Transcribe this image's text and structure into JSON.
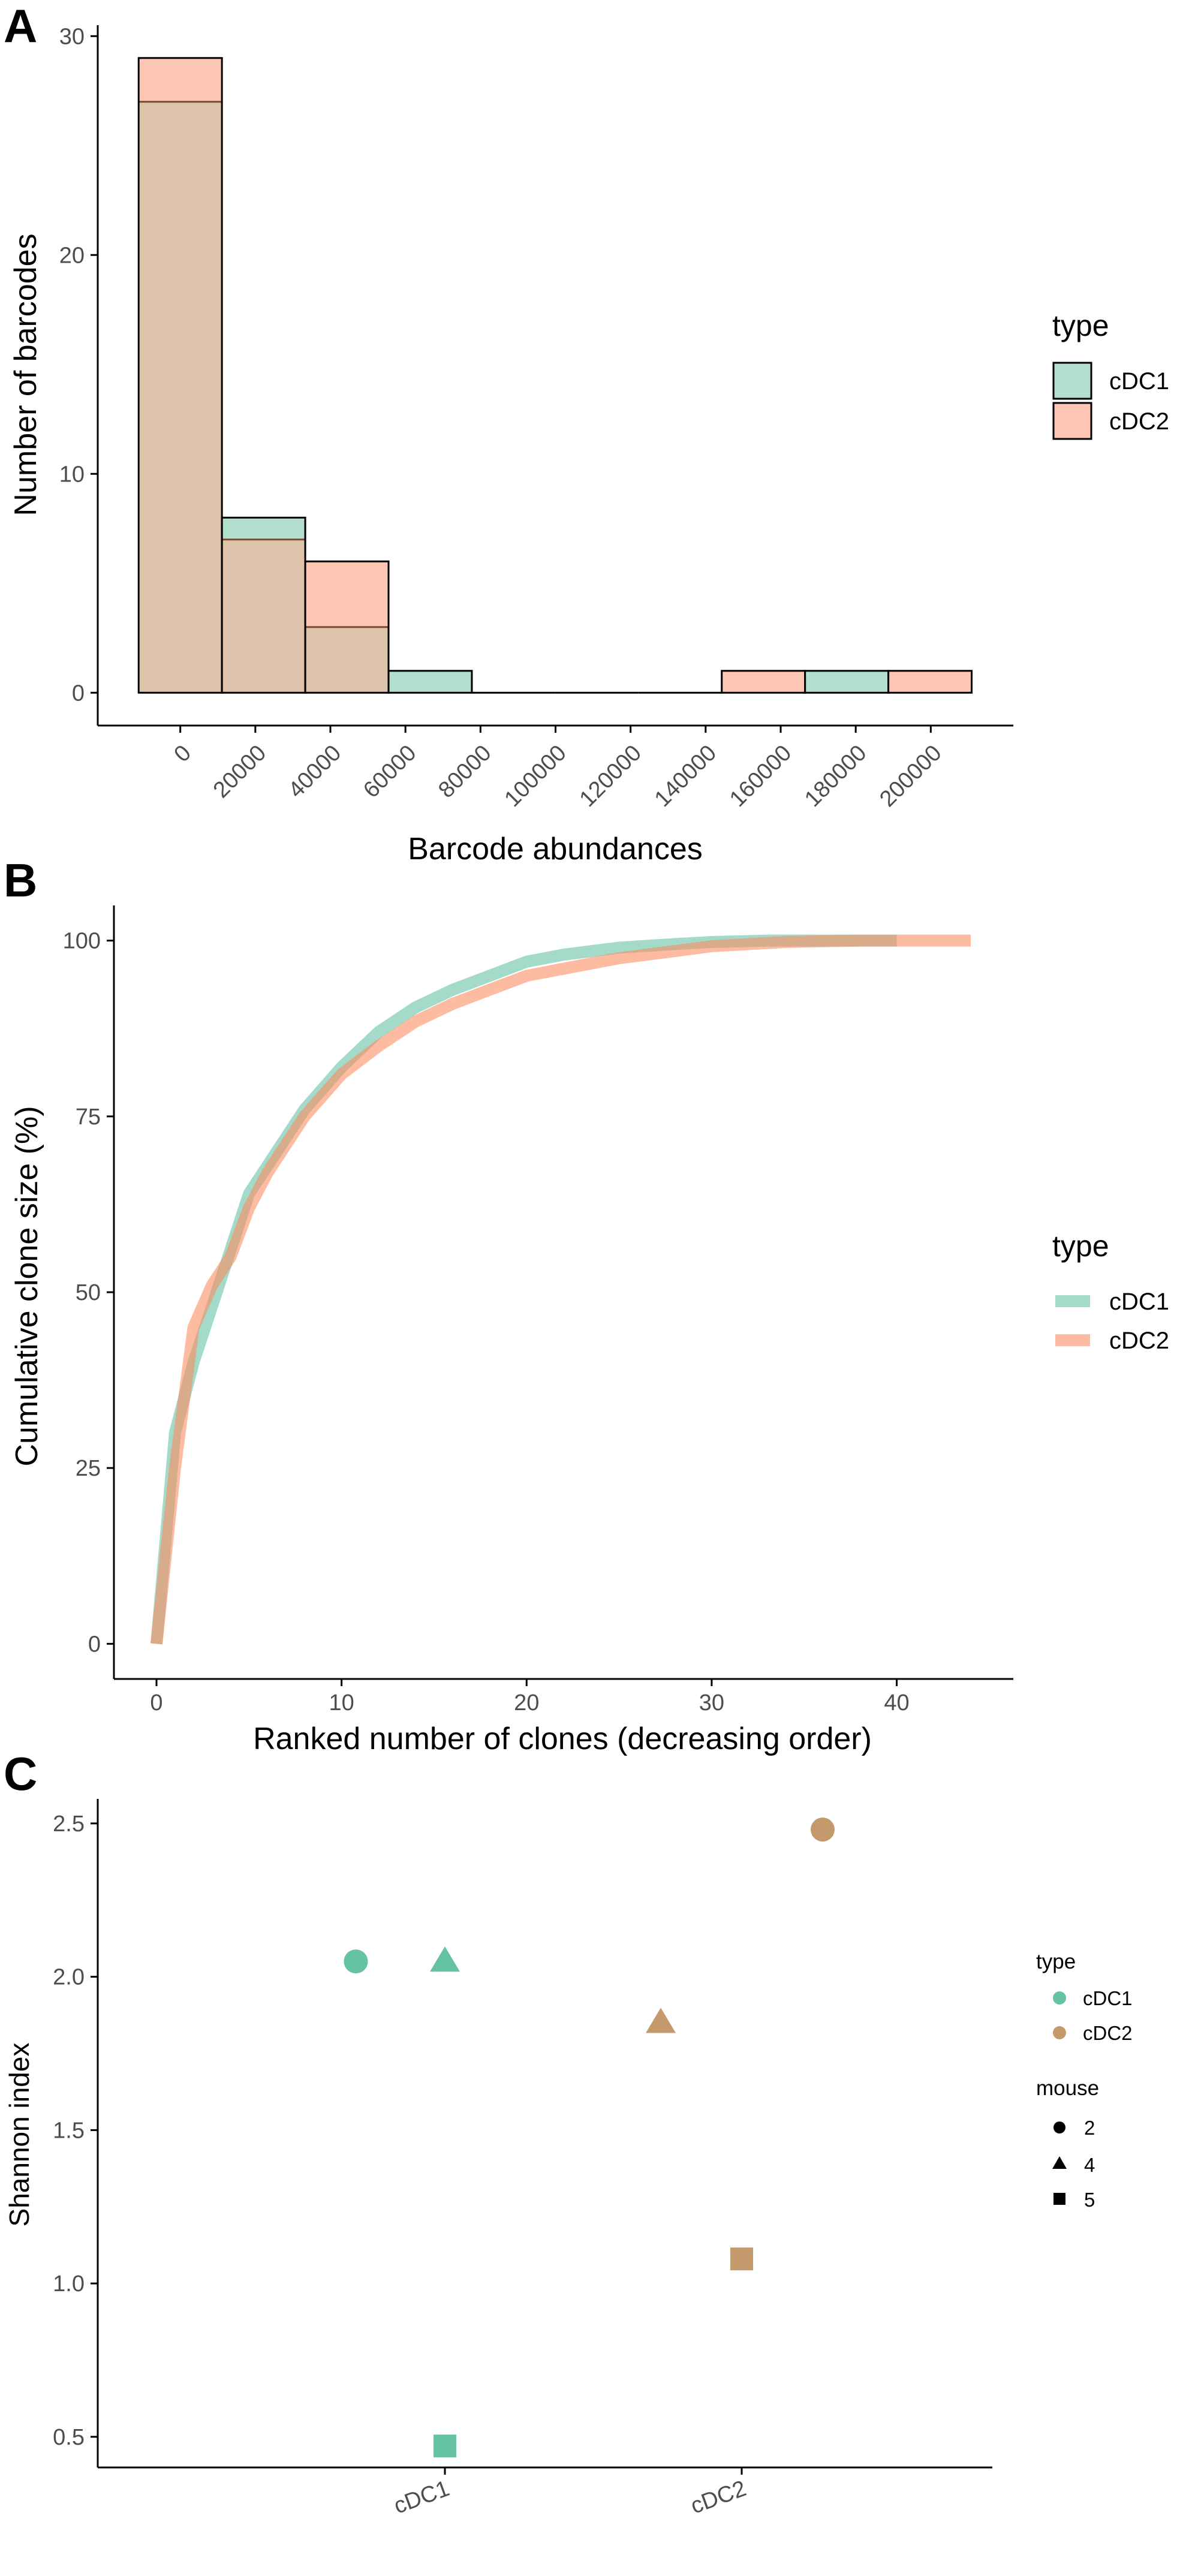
{
  "colors": {
    "cdc1": "#66c2a5",
    "cdc2": "#fc8d62",
    "cdc1_fill": "#b3dfcf",
    "cdc2_fill": "#fdc6b5",
    "overlap_fill": "#dcc3a9",
    "cdc2_point": "#c49a6c",
    "axis": "#000000"
  },
  "chart_data": [
    {
      "panel": "A",
      "type": "bar",
      "subtype": "overlaid histogram",
      "xlabel": "Barcode abundances",
      "ylabel": "Number of barcodes",
      "x_ticks": [
        0,
        20000,
        40000,
        60000,
        80000,
        100000,
        120000,
        140000,
        160000,
        180000,
        200000
      ],
      "x_tick_labels": [
        "0",
        "20000",
        "40000",
        "60000",
        "80000",
        "100000",
        "120000",
        "140000",
        "160000",
        "180000",
        "200000"
      ],
      "y_ticks": [
        0,
        10,
        20,
        30
      ],
      "y_tick_labels": [
        "0",
        "10",
        "20",
        "30"
      ],
      "xlim": [
        -22000,
        222000
      ],
      "ylim": [
        -1.5,
        30.5
      ],
      "bin_width": 22200,
      "bin_centers": [
        0,
        22200,
        44400,
        66600,
        88800,
        111000,
        133200,
        155400,
        177600,
        199800
      ],
      "series": [
        {
          "name": "cDC1",
          "values": [
            27,
            8,
            3,
            1,
            0,
            0,
            0,
            0,
            1,
            0
          ]
        },
        {
          "name": "cDC2",
          "values": [
            29,
            7,
            6,
            0,
            0,
            0,
            0,
            1,
            0,
            1
          ]
        }
      ],
      "legend": {
        "title": "type",
        "entries": [
          "cDC1",
          "cDC2"
        ],
        "position": "right"
      }
    },
    {
      "panel": "B",
      "type": "line",
      "xlabel": "Ranked number of clones (decreasing order)",
      "ylabel": "Cumulative clone size (%)",
      "x_ticks": [
        0,
        10,
        20,
        30,
        40
      ],
      "x_tick_labels": [
        "0",
        "10",
        "20",
        "30",
        "40"
      ],
      "y_ticks": [
        0,
        25,
        50,
        75,
        100
      ],
      "y_tick_labels": [
        "0",
        "25",
        "50",
        "75",
        "100"
      ],
      "xlim": [
        -2.3,
        46.3
      ],
      "ylim": [
        -5,
        105
      ],
      "series": [
        {
          "name": "cDC1",
          "x": [
            0,
            1,
            2,
            3,
            4,
            5,
            6,
            7,
            8,
            9,
            10,
            12,
            14,
            16,
            18,
            20,
            22,
            25,
            28,
            30,
            33,
            36,
            40
          ],
          "y": [
            0,
            30,
            40,
            48,
            56,
            64,
            68,
            72,
            76,
            79,
            82,
            87,
            90.5,
            93,
            95,
            97,
            98,
            99,
            99.5,
            99.8,
            100,
            100,
            100
          ]
        },
        {
          "name": "cDC2",
          "x": [
            0,
            1,
            2,
            3,
            4,
            5,
            6,
            7,
            8,
            10,
            12,
            14,
            16,
            18,
            20,
            22,
            25,
            28,
            30,
            34,
            38,
            41,
            44
          ],
          "y": [
            0,
            25,
            45,
            51,
            55,
            62,
            67,
            71,
            75,
            81,
            85,
            88.5,
            91,
            93,
            95,
            96,
            97.5,
            98.5,
            99.2,
            99.8,
            100,
            100,
            100
          ]
        }
      ],
      "legend": {
        "title": "type",
        "entries": [
          "cDC1",
          "cDC2"
        ],
        "position": "right"
      }
    },
    {
      "panel": "C",
      "type": "scatter",
      "xlabel": "",
      "ylabel": "Shannon index",
      "categories": [
        "cDC1",
        "cDC2"
      ],
      "y_ticks": [
        0.5,
        1.0,
        1.5,
        2.0,
        2.5
      ],
      "y_tick_labels": [
        "0.5",
        "1.0",
        "1.5",
        "2.0",
        "2.5"
      ],
      "ylim": [
        0.4,
        2.58
      ],
      "points": [
        {
          "type": "cDC1",
          "mouse": "2",
          "x_offset": -0.22,
          "y": 2.05
        },
        {
          "type": "cDC1",
          "mouse": "4",
          "x_offset": 0.0,
          "y": 2.05
        },
        {
          "type": "cDC1",
          "mouse": "5",
          "x_offset": 0.0,
          "y": 0.47
        },
        {
          "type": "cDC2",
          "mouse": "2",
          "x_offset": 0.2,
          "y": 2.48
        },
        {
          "type": "cDC2",
          "mouse": "4",
          "x_offset": -0.2,
          "y": 1.85
        },
        {
          "type": "cDC2",
          "mouse": "5",
          "x_offset": 0.0,
          "y": 1.08
        }
      ],
      "legend": {
        "type_title": "type",
        "type_entries": [
          "cDC1",
          "cDC2"
        ],
        "mouse_title": "mouse",
        "mouse_entries": [
          "2",
          "4",
          "5"
        ],
        "position": "right"
      }
    }
  ],
  "panels": {
    "a": "A",
    "b": "B",
    "c": "C"
  }
}
